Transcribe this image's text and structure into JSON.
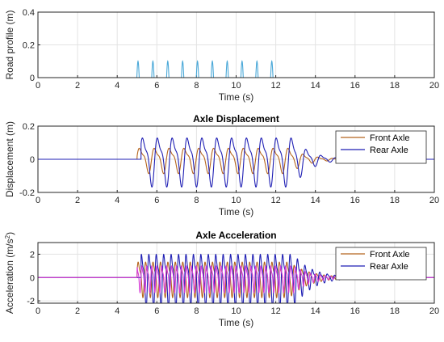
{
  "chart_data": [
    {
      "type": "line",
      "title": "",
      "xlabel": "Time (s)",
      "ylabel": "Road profile (m)",
      "xlim": [
        0,
        20
      ],
      "ylim": [
        0,
        0.4
      ],
      "xticks": [
        "0",
        "2",
        "4",
        "6",
        "8",
        "10",
        "12",
        "14",
        "16",
        "18",
        "20"
      ],
      "yticks": [
        "0",
        "0.2",
        "0.4"
      ],
      "grid": true,
      "legend": null,
      "series": [
        {
          "color": "#4aa8d8",
          "bump_times": [
            5.05,
            5.8,
            6.55,
            7.3,
            8.05,
            8.8,
            9.55,
            10.3,
            11.05,
            11.8
          ],
          "bump_height": 0.1,
          "baseline": 0.0
        }
      ]
    },
    {
      "type": "line",
      "title": "Axle Displacement",
      "xlabel": "Time (s)",
      "ylabel": "Displacement (m)",
      "xlim": [
        0,
        20
      ],
      "ylim": [
        -0.2,
        0.2
      ],
      "xticks": [
        "0",
        "2",
        "4",
        "6",
        "8",
        "10",
        "12",
        "14",
        "16",
        "18",
        "20"
      ],
      "yticks": [
        "-0.2",
        "0",
        "0.2"
      ],
      "grid": true,
      "legend": "top-right",
      "series": [
        {
          "name": "Front Axle",
          "color": "#b5651d",
          "start": 5.0,
          "end": 12.7,
          "decay_end": 15.5,
          "period": 0.75,
          "amplitude": 0.08,
          "phase": 0.0
        },
        {
          "name": "Rear Axle",
          "color": "#1f1fb4",
          "start": 5.2,
          "end": 12.9,
          "decay_end": 15.5,
          "period": 0.75,
          "amplitude": 0.155,
          "phase": 0.35
        }
      ]
    },
    {
      "type": "line",
      "title": "Axle Acceleration",
      "xlabel": "Time (s)",
      "ylabel": "Acceleration (m/s",
      "ylabel_sup": "2",
      "ylabel_end": ")",
      "xlim": [
        0,
        20
      ],
      "ylim": [
        -2.2,
        3
      ],
      "xticks": [
        "0",
        "2",
        "4",
        "6",
        "8",
        "10",
        "12",
        "14",
        "16",
        "18",
        "20"
      ],
      "yticks": [
        "-2",
        "0",
        "2"
      ],
      "grid": true,
      "legend": "top-right",
      "series": [
        {
          "name": "Front Axle",
          "color": "#b5651d",
          "start": 5.0,
          "end": 12.7,
          "decay_end": 15.8,
          "period": 0.375,
          "amplitude": 1.6,
          "phase": 0.0
        },
        {
          "name": "Rear Axle",
          "color": "#1f1fb4",
          "start": 5.2,
          "end": 12.9,
          "decay_end": 15.8,
          "period": 0.375,
          "amplitude": 2.4,
          "phase": 0.6
        },
        {
          "color": "#d63cd6",
          "start": 5.0,
          "end": 12.9,
          "decay_end": 15.8,
          "period": 0.25,
          "amplitude": 1.2,
          "phase": 1.2
        }
      ]
    }
  ]
}
